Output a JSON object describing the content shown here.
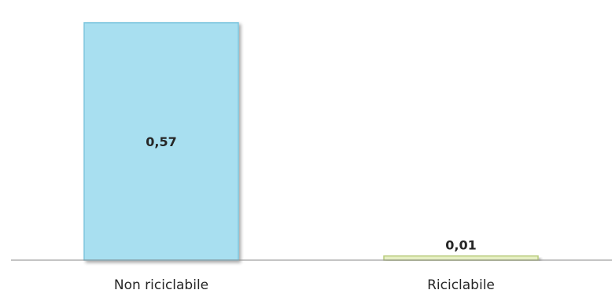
{
  "chart_data": {
    "type": "bar",
    "categories": [
      "Non riciclabile",
      "Riciclabile"
    ],
    "values": [
      0.57,
      0.01
    ],
    "value_labels": [
      "0,57",
      "0,01"
    ],
    "title": "",
    "xlabel": "",
    "ylabel": "",
    "ylim": [
      0,
      0.6
    ],
    "grid": false,
    "legend": "none",
    "colors": {
      "bar_fill": [
        "#a8dff0",
        "#e6efc4"
      ],
      "bar_stroke": [
        "#7dc6de",
        "#b9cc7e"
      ],
      "axis": "#8a8a8a",
      "text": "#262626"
    }
  }
}
